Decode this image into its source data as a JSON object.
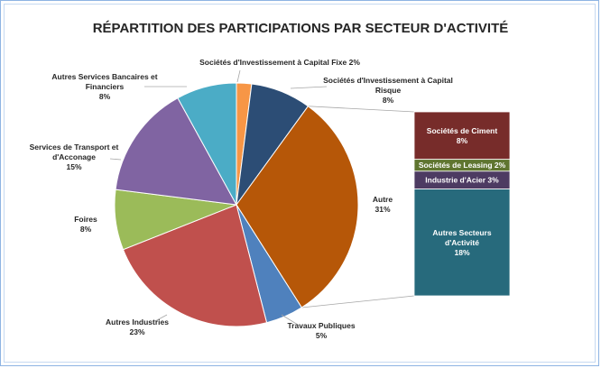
{
  "chart_data": {
    "type": "pie",
    "subtype": "bar-of-pie",
    "title": "RÉPARTITION DES PARTICIPATIONS PAR SECTEUR D'ACTIVITÉ",
    "slices": [
      {
        "label": "Sociétés d'Investissement à Capital Fixe",
        "value": 2,
        "pct": "2%",
        "color": "#f79646"
      },
      {
        "label": "Sociétés d'Investissement à Capital Risque",
        "value": 8,
        "pct": "8%",
        "color": "#2c4d75"
      },
      {
        "label": "Autre",
        "value": 31,
        "pct": "31%",
        "color": "#b65708"
      },
      {
        "label": "Travaux Publiques",
        "value": 5,
        "pct": "5%",
        "color": "#4f81bd"
      },
      {
        "label": "Autres Industries",
        "value": 23,
        "pct": "23%",
        "color": "#c0504d"
      },
      {
        "label": "Foires",
        "value": 8,
        "pct": "8%",
        "color": "#9bbb59"
      },
      {
        "label": "Services de Transport  et d'Acconage",
        "value": 15,
        "pct": "15%",
        "color": "#8064a2"
      },
      {
        "label": "Autres Services Bancaires et Financiers",
        "value": 8,
        "pct": "8%",
        "color": "#4bacc6"
      }
    ],
    "breakdown_of": "Autre",
    "breakdown": [
      {
        "label": "Sociétés de Ciment",
        "value": 8,
        "pct": "8%",
        "color": "#772c2a"
      },
      {
        "label": "Sociétés de Leasing",
        "value": 2,
        "pct": "2%",
        "color": "#5f7530"
      },
      {
        "label": "Industrie d'Acier",
        "value": 3,
        "pct": "3%",
        "color": "#4d3b62"
      },
      {
        "label": "Autres Secteurs d'Activité",
        "value": 18,
        "pct": "18%",
        "color": "#276a7c"
      }
    ]
  }
}
